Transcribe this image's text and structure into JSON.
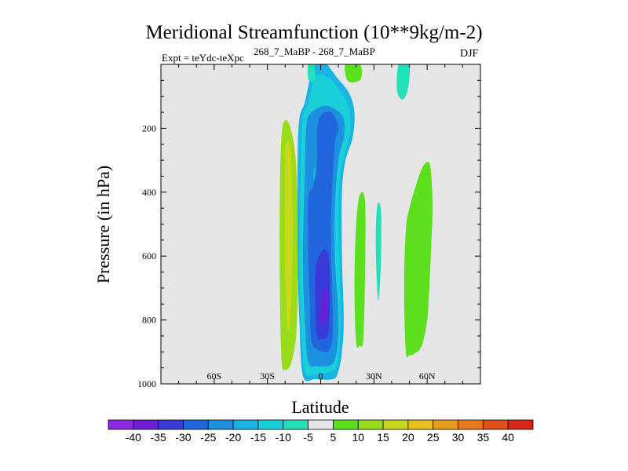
{
  "chart_data": {
    "type": "contour",
    "title": "Meridional Streamfunction (10**9kg/m-2)",
    "experiment_label": "Expt = teYdc-teXpc",
    "subtitle": "268_7_MaBP - 268_7_MaBP",
    "season": "DJF",
    "xlabel": "Latitude",
    "ylabel": "Pressure (in hPa)",
    "xlim": [
      -90,
      90
    ],
    "ylim": [
      1000,
      0
    ],
    "x_ticks": [
      {
        "value": -60,
        "label": "60S"
      },
      {
        "value": -30,
        "label": "30S"
      },
      {
        "value": 0,
        "label": "0"
      },
      {
        "value": 30,
        "label": "30N"
      },
      {
        "value": 60,
        "label": "60N"
      }
    ],
    "y_ticks": [
      {
        "value": 200,
        "label": "200"
      },
      {
        "value": 400,
        "label": "400"
      },
      {
        "value": 600,
        "label": "600"
      },
      {
        "value": 800,
        "label": "800"
      },
      {
        "value": 1000,
        "label": "1000"
      }
    ],
    "colorbar": {
      "boundaries": [
        "-40",
        "-35",
        "-30",
        "-25",
        "-20",
        "-15",
        "-10",
        "-5",
        "5",
        "10",
        "15",
        "20",
        "25",
        "30",
        "35",
        "40"
      ],
      "colors": [
        "#8a2be2",
        "#6a1fd8",
        "#3a3ad9",
        "#2266dd",
        "#1e90e0",
        "#18b4e4",
        "#1ad0d8",
        "#22e0b8",
        "#e6e6e6",
        "#5ce01e",
        "#98dc1c",
        "#c8d81a",
        "#e6c21a",
        "#e69e1a",
        "#e67a1a",
        "#e0501a",
        "#d8261a"
      ]
    },
    "background_color": "#e6e6e6",
    "contours": [
      {
        "name": "green-sh-band",
        "color": "#98dc1c",
        "points": [
          [
            -22,
            930
          ],
          [
            -23,
            700
          ],
          [
            -23,
            400
          ],
          [
            -22,
            220
          ],
          [
            -20,
            175
          ],
          [
            -17,
            200
          ],
          [
            -14,
            300
          ],
          [
            -13,
            500
          ],
          [
            -13,
            700
          ],
          [
            -14,
            860
          ],
          [
            -17,
            940
          ],
          [
            -20,
            955
          ]
        ]
      },
      {
        "name": "yellow-sh-band",
        "color": "#c8d81a",
        "points": [
          [
            -19,
            820
          ],
          [
            -20,
            600
          ],
          [
            -20,
            300
          ],
          [
            -19,
            240
          ],
          [
            -17,
            260
          ],
          [
            -16,
            400
          ],
          [
            -16,
            620
          ],
          [
            -17,
            800
          ]
        ]
      },
      {
        "name": "blue-outer",
        "color": "#18b4e4",
        "points": [
          [
            -10,
            975
          ],
          [
            -12,
            800
          ],
          [
            -13,
            600
          ],
          [
            -13,
            300
          ],
          [
            -12,
            170
          ],
          [
            -9,
            120
          ],
          [
            -6,
            40
          ],
          [
            -5,
            0
          ],
          [
            3,
            0
          ],
          [
            5,
            10
          ],
          [
            9,
            40
          ],
          [
            16,
            90
          ],
          [
            19,
            150
          ],
          [
            18,
            230
          ],
          [
            14,
            300
          ],
          [
            12,
            400
          ],
          [
            12,
            600
          ],
          [
            13,
            800
          ],
          [
            12,
            900
          ],
          [
            10,
            960
          ],
          [
            7,
            985
          ],
          [
            -3,
            985
          ]
        ]
      },
      {
        "name": "teal-ring",
        "color": "#1ad0d8",
        "points": [
          [
            -9,
            960
          ],
          [
            -11,
            800
          ],
          [
            -12,
            600
          ],
          [
            -11,
            300
          ],
          [
            -10,
            170
          ],
          [
            -7,
            120
          ],
          [
            -3,
            40
          ],
          [
            4,
            40
          ],
          [
            9,
            70
          ],
          [
            15,
            120
          ],
          [
            17,
            200
          ],
          [
            14,
            270
          ],
          [
            11,
            350
          ],
          [
            10,
            500
          ],
          [
            11,
            700
          ],
          [
            11,
            850
          ],
          [
            9,
            940
          ],
          [
            6,
            960
          ],
          [
            -3,
            970
          ]
        ]
      },
      {
        "name": "blue-20",
        "color": "#1e90e0",
        "points": [
          [
            -7,
            930
          ],
          [
            -9,
            800
          ],
          [
            -10,
            600
          ],
          [
            -9,
            350
          ],
          [
            -8,
            190
          ],
          [
            -5,
            150
          ],
          [
            2,
            130
          ],
          [
            8,
            140
          ],
          [
            13,
            170
          ],
          [
            13,
            230
          ],
          [
            10,
            300
          ],
          [
            8,
            450
          ],
          [
            8,
            600
          ],
          [
            10,
            800
          ],
          [
            9,
            900
          ],
          [
            6,
            940
          ],
          [
            -2,
            945
          ]
        ]
      },
      {
        "name": "blue-25",
        "color": "#2266dd",
        "points": [
          [
            -5,
            870
          ],
          [
            -6,
            750
          ],
          [
            -7,
            600
          ],
          [
            -7,
            420
          ],
          [
            -4,
            380
          ],
          [
            -2,
            300
          ],
          [
            -2,
            210
          ],
          [
            0,
            160
          ],
          [
            6,
            150
          ],
          [
            10,
            200
          ],
          [
            8,
            250
          ],
          [
            6,
            450
          ],
          [
            6,
            620
          ],
          [
            7,
            800
          ],
          [
            6,
            880
          ],
          [
            2,
            900
          ]
        ]
      },
      {
        "name": "blue-30",
        "color": "#3a3ad9",
        "points": [
          [
            -2,
            850
          ],
          [
            -3,
            750
          ],
          [
            -3,
            650
          ],
          [
            -1,
            600
          ],
          [
            3,
            580
          ],
          [
            5,
            640
          ],
          [
            5,
            800
          ],
          [
            4,
            850
          ],
          [
            1,
            860
          ]
        ]
      },
      {
        "name": "blue-35",
        "color": "#6a1fd8",
        "points": [
          [
            0,
            800
          ],
          [
            1,
            720
          ],
          [
            3,
            700
          ],
          [
            4,
            730
          ],
          [
            4,
            790
          ],
          [
            2,
            810
          ]
        ]
      },
      {
        "name": "cyan-left-sliver",
        "color": "#18b4e4",
        "points": [
          [
            -4,
            330
          ],
          [
            -3,
            320
          ],
          [
            -3,
            350
          ],
          [
            -4,
            360
          ]
        ]
      },
      {
        "name": "green-top-equator",
        "color": "#5ce01e",
        "points": [
          [
            14,
            0
          ],
          [
            22,
            0
          ],
          [
            23,
            40
          ],
          [
            20,
            55
          ],
          [
            15,
            50
          ]
        ]
      },
      {
        "name": "teal-top-left",
        "color": "#22e0b8",
        "points": [
          [
            -7,
            0
          ],
          [
            -4,
            0
          ],
          [
            -3,
            40
          ],
          [
            -5,
            55
          ],
          [
            -7,
            45
          ]
        ]
      },
      {
        "name": "teal-top-nh",
        "color": "#22e0b8",
        "points": [
          [
            44,
            0
          ],
          [
            50,
            0
          ],
          [
            49,
            80
          ],
          [
            46,
            110
          ],
          [
            43,
            80
          ]
        ]
      },
      {
        "name": "green-nh-strip",
        "color": "#5ce01e",
        "points": [
          [
            20,
            870
          ],
          [
            19,
            700
          ],
          [
            20,
            500
          ],
          [
            22,
            410
          ],
          [
            25,
            430
          ],
          [
            25,
            650
          ],
          [
            24,
            860
          ],
          [
            22,
            880
          ]
        ]
      },
      {
        "name": "teal-nh-sliver",
        "color": "#22e0b8",
        "points": [
          [
            32,
            720
          ],
          [
            31,
            550
          ],
          [
            32,
            440
          ],
          [
            34,
            460
          ],
          [
            34,
            600
          ],
          [
            33,
            720
          ]
        ]
      },
      {
        "name": "green-nh-large",
        "color": "#5ce01e",
        "points": [
          [
            48,
            900
          ],
          [
            47,
            700
          ],
          [
            48,
            520
          ],
          [
            50,
            450
          ],
          [
            56,
            340
          ],
          [
            60,
            305
          ],
          [
            62,
            330
          ],
          [
            63,
            450
          ],
          [
            62,
            600
          ],
          [
            61,
            720
          ],
          [
            60,
            800
          ],
          [
            57,
            880
          ],
          [
            53,
            905
          ],
          [
            50,
            910
          ]
        ]
      }
    ]
  }
}
